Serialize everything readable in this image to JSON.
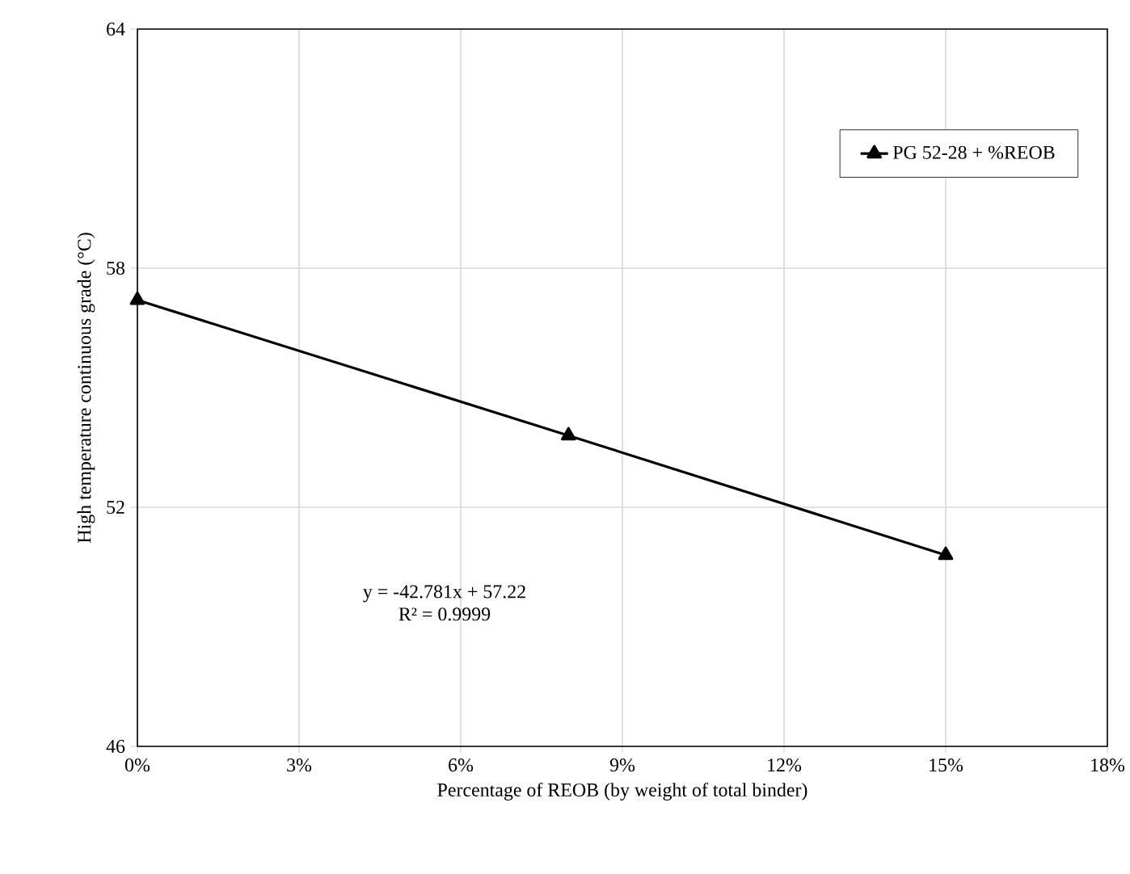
{
  "chart_data": {
    "type": "line",
    "xlabel": "Percentage of REOB (by weight  of total binder)",
    "ylabel": "High temperature  continuous  grade  (°C)",
    "x": [
      0,
      0.08,
      0.15
    ],
    "series": [
      {
        "name": "PG 52-28 + %REOB",
        "color": "#000000",
        "values": [
          57.2,
          53.8,
          50.8
        ]
      }
    ],
    "xlim": [
      0,
      0.18
    ],
    "xticks": [
      {
        "value": 0,
        "label": "0%"
      },
      {
        "value": 0.03,
        "label": "3%"
      },
      {
        "value": 0.06,
        "label": "6%"
      },
      {
        "value": 0.09,
        "label": "9%"
      },
      {
        "value": 0.12,
        "label": "12%"
      },
      {
        "value": 0.15,
        "label": "15%"
      },
      {
        "value": 0.18,
        "label": "18%"
      }
    ],
    "ylim": [
      46,
      64
    ],
    "yticks": [
      46,
      52,
      58,
      64
    ],
    "grid": true,
    "legend": "top right",
    "marker": "triangle",
    "line_style": "solid",
    "annotations": [
      "y = -42.781x + 57.22",
      "R² = 0.9999"
    ]
  }
}
